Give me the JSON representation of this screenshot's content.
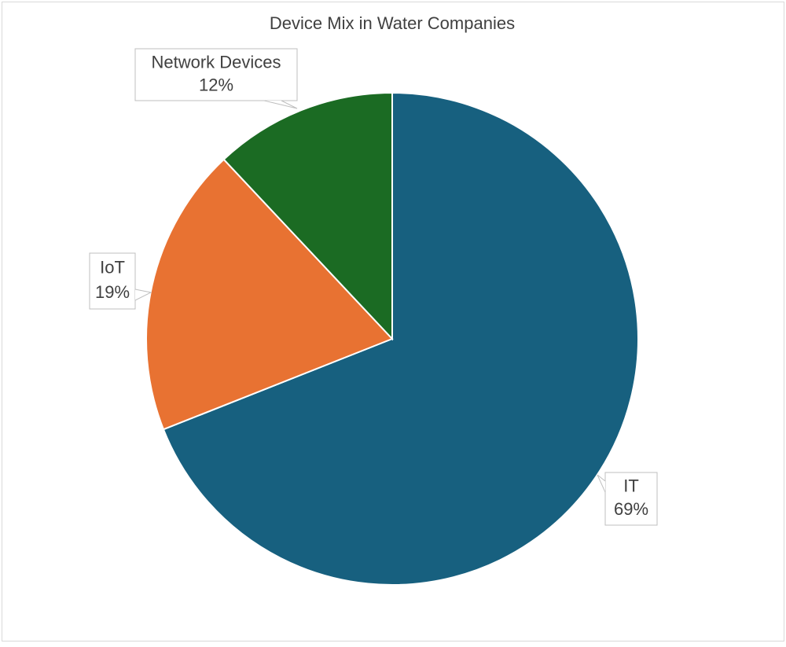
{
  "chart_data": {
    "type": "pie",
    "title": "Device Mix in Water Companies",
    "categories": [
      "IT",
      "IoT",
      "Network Devices"
    ],
    "values": [
      69,
      19,
      12
    ],
    "value_labels": [
      "69%",
      "19%",
      "12%"
    ],
    "colors": [
      "#17607f",
      "#e87232",
      "#1b6b23"
    ]
  }
}
